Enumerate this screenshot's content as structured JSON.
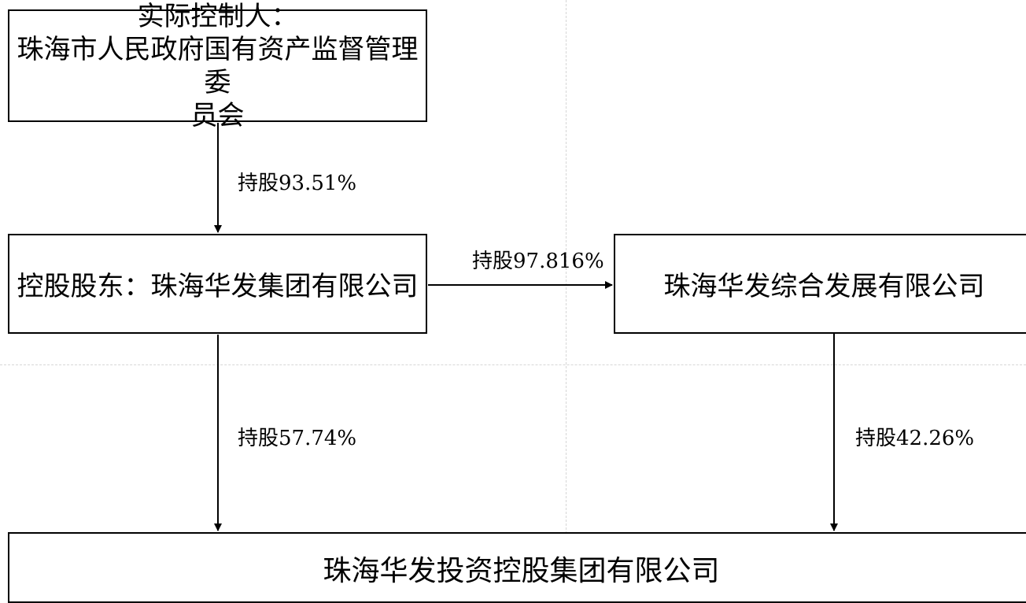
{
  "nodes": {
    "controller": {
      "lines": [
        "实际控制人：",
        "珠海市人民政府国有资产监督管理委",
        "员会"
      ]
    },
    "holder": {
      "label": "控股股东：珠海华发集团有限公司"
    },
    "development": {
      "label": "珠海华发综合发展有限公司"
    },
    "target": {
      "label": "珠海华发投资控股集团有限公司"
    }
  },
  "edges": [
    {
      "from": "controller",
      "to": "holder",
      "label": "持股93.51%"
    },
    {
      "from": "holder",
      "to": "development",
      "label": "持股97.816%"
    },
    {
      "from": "holder",
      "to": "target",
      "label": "持股57.74%"
    },
    {
      "from": "development",
      "to": "target",
      "label": "持股42.26%"
    }
  ]
}
